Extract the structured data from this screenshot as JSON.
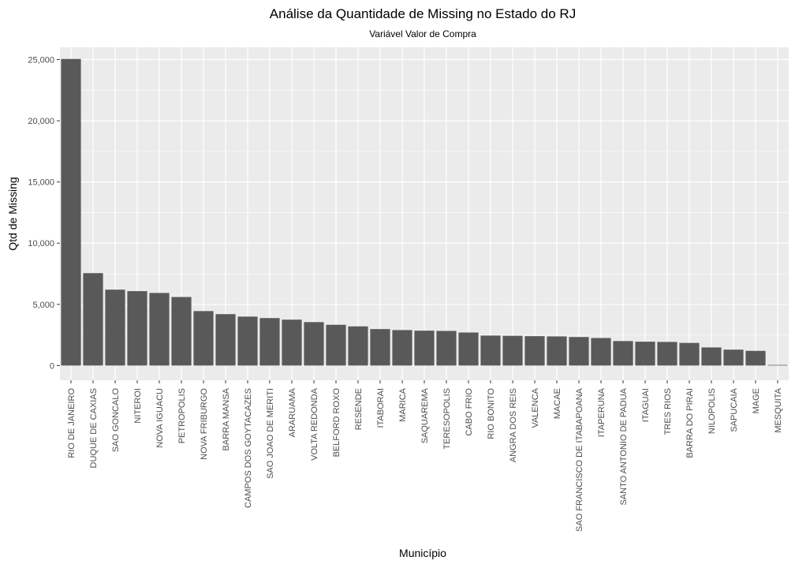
{
  "chart_data": {
    "type": "bar",
    "title": "Análise da Quantidade de Missing no Estado do RJ",
    "subtitle": "Variável Valor de Compra",
    "xlabel": "Município",
    "ylabel": "Qtd de Missing",
    "ylim": [
      -1200,
      26000
    ],
    "yticks": [
      0,
      5000,
      10000,
      15000,
      20000,
      25000
    ],
    "ytick_labels": [
      "0",
      "5,000",
      "10,000",
      "15,000",
      "20,000",
      "25,000"
    ],
    "grid": true,
    "categories": [
      "RIO DE JANEIRO",
      "DUQUE DE CAXIAS",
      "SAO GONCALO",
      "NITEROI",
      "NOVA IGUACU",
      "PETROPOLIS",
      "NOVA FRIBURGO",
      "BARRA MANSA",
      "CAMPOS DOS GOYTACAZES",
      "SAO JOAO DE MERITI",
      "ARARUAMA",
      "VOLTA REDONDA",
      "BELFORD ROXO",
      "RESENDE",
      "ITABORAI",
      "MARICA",
      "SAQUAREMA",
      "TERESOPOLIS",
      "CABO FRIO",
      "RIO BONITO",
      "ANGRA DOS REIS",
      "VALENCA",
      "MACAE",
      "SAO FRANCISCO DE ITABAPOANA",
      "ITAPERUNA",
      "SANTO ANTONIO DE PADUA",
      "ITAGUAI",
      "TRES RIOS",
      "BARRA DO PIRAI",
      "NILOPOLIS",
      "SAPUCAIA",
      "MAGE",
      "MESQUITA"
    ],
    "values": [
      25050,
      7550,
      6200,
      6080,
      5930,
      5600,
      4450,
      4200,
      4000,
      3880,
      3750,
      3550,
      3330,
      3200,
      2980,
      2900,
      2850,
      2830,
      2700,
      2450,
      2430,
      2400,
      2380,
      2330,
      2250,
      2000,
      1950,
      1930,
      1850,
      1480,
      1300,
      1200,
      50
    ],
    "bar_color": "#595959",
    "panel_color": "#ebebeb",
    "grid_color": "#ffffff"
  }
}
